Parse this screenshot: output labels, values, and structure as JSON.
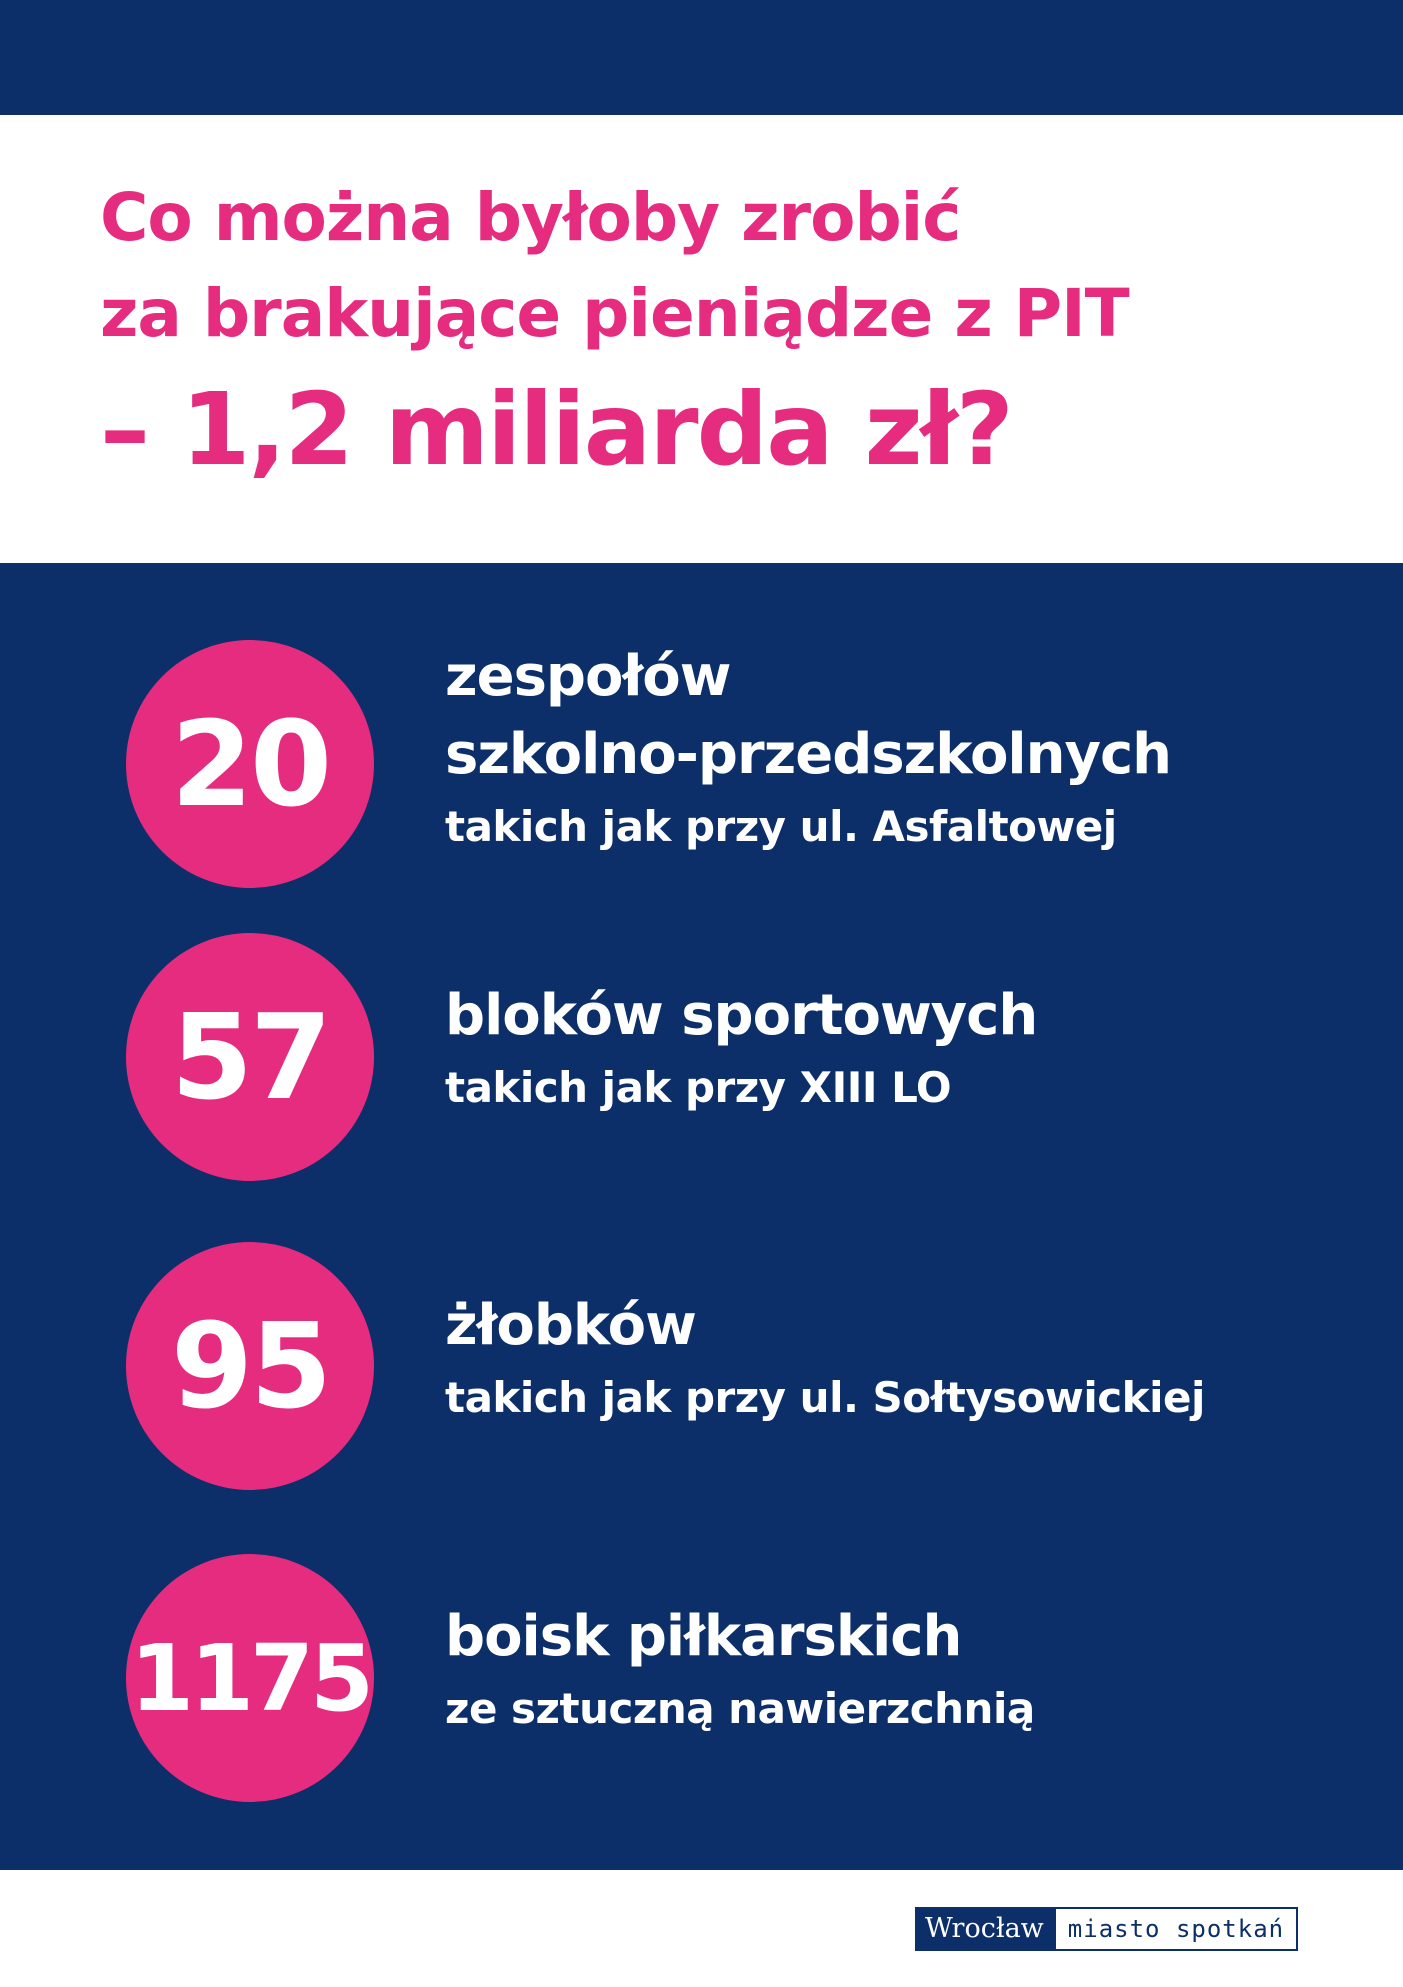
{
  "headline": {
    "line1": "Co można byłoby zrobić",
    "line2": "za brakujące pieniądze z PIT",
    "line3": "– 1,2 miliarda zł?"
  },
  "stats": [
    {
      "number": "20",
      "lines": [
        "zespołów",
        "szkolno-przedszkolnych"
      ],
      "detail": "takich jak przy ul. Asfaltowej"
    },
    {
      "number": "57",
      "lines": [
        "bloków sportowych"
      ],
      "detail": "takich jak przy XIII LO"
    },
    {
      "number": "95",
      "lines": [
        "żłobków"
      ],
      "detail": "takich jak przy ul. Sołtysowickiej"
    },
    {
      "number": "1175",
      "lines": [
        "boisk piłkarskich"
      ],
      "detail": "ze sztuczną nawierzchnią"
    }
  ],
  "logo": {
    "city": "Wrocław",
    "tagline": "miasto spotkań"
  },
  "colors": {
    "navy": "#0c2f69",
    "pink": "#e62c7f",
    "white": "#ffffff"
  }
}
